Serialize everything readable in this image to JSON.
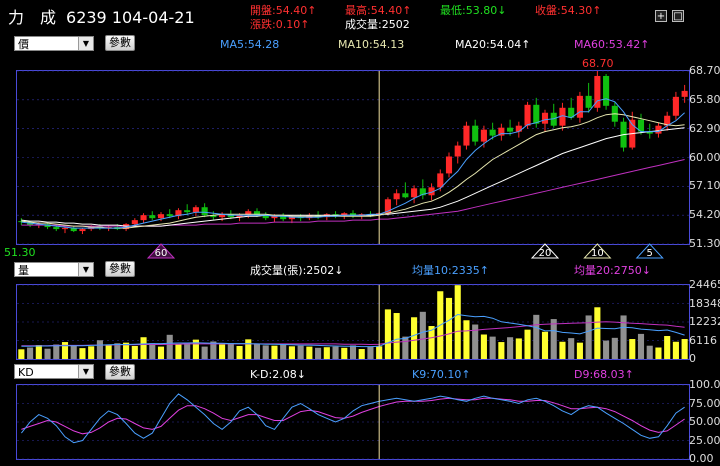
{
  "header": {
    "stock_name": "力　成",
    "code_date": "6239 104-04-21",
    "open": "開盤:54.40↑",
    "high": "最高:54.40↑",
    "low": "最低:53.80↓",
    "close": "收盤:54.30↑",
    "change": "漲跌:0.10↑",
    "volume": "成交量:2502",
    "plus_icon": "+",
    "window_icon": "□"
  },
  "colors": {
    "up": "#ff2828",
    "down": "#10c010",
    "ma5": "#4aa0ff",
    "ma10": "#e8e8b0",
    "ma20": "#ffffff",
    "ma60": "#c030c0",
    "vol_up": "#ffff30",
    "vol_down": "#909090",
    "k": "#4aa0ff",
    "d": "#e040e0",
    "grid": "#3030a0",
    "panel_border": "#4a4ad8",
    "cursor": "#f0e0a0"
  },
  "price_panel": {
    "selector": "價",
    "param_button": "參數",
    "ma5": "MA5:54.28",
    "ma10": "MA10:54.13",
    "ma20": "MA20:54.04↑",
    "ma60": "MA60:53.42↑",
    "high_label": "68.70",
    "low_label": "51.30",
    "markers": [
      "60",
      "20",
      "10",
      "5"
    ]
  },
  "volume_panel": {
    "selector": "量",
    "param_button": "參數",
    "vol_label": "成交量(張):2502↓",
    "avg10": "均量10:2335↑",
    "avg20": "均量20:2750↓"
  },
  "kd_panel": {
    "selector": "KD",
    "param_button": "參數",
    "kd_diff": "K-D:2.08↓",
    "k": "K9:70.10↑",
    "d": "D9:68.03↑"
  },
  "chart_data": [
    {
      "type": "candlestick",
      "title": "",
      "ylim": [
        51.3,
        68.7
      ],
      "y_ticks": [
        "68.70",
        "65.80",
        "62.90",
        "60.00",
        "57.10",
        "54.20",
        "51.30"
      ],
      "candles": [
        [
          53.6,
          53.9,
          53.2,
          53.5
        ],
        [
          53.5,
          53.6,
          53.0,
          53.2
        ],
        [
          53.2,
          53.5,
          52.9,
          53.3
        ],
        [
          53.3,
          53.4,
          52.8,
          53.0
        ],
        [
          53.0,
          53.2,
          52.6,
          52.8
        ],
        [
          52.8,
          53.0,
          52.4,
          52.9
        ],
        [
          52.9,
          53.1,
          52.5,
          52.6
        ],
        [
          52.6,
          52.9,
          52.3,
          52.8
        ],
        [
          52.8,
          53.2,
          52.6,
          53.1
        ],
        [
          53.1,
          53.3,
          52.7,
          52.9
        ],
        [
          52.9,
          53.2,
          52.6,
          53.0
        ],
        [
          53.0,
          53.3,
          52.7,
          52.8
        ],
        [
          52.8,
          53.4,
          52.6,
          53.3
        ],
        [
          53.3,
          53.9,
          53.0,
          53.7
        ],
        [
          53.7,
          54.4,
          53.4,
          54.2
        ],
        [
          54.2,
          54.6,
          53.7,
          53.9
        ],
        [
          53.9,
          54.5,
          53.6,
          54.3
        ],
        [
          54.3,
          54.8,
          53.9,
          54.1
        ],
        [
          54.1,
          54.9,
          53.8,
          54.7
        ],
        [
          54.7,
          55.3,
          54.2,
          54.5
        ],
        [
          54.5,
          55.2,
          54.1,
          55.0
        ],
        [
          55.0,
          55.4,
          54.0,
          54.2
        ],
        [
          54.2,
          54.6,
          53.7,
          54.0
        ],
        [
          54.0,
          54.5,
          53.6,
          54.3
        ],
        [
          54.3,
          54.7,
          53.8,
          54.0
        ],
        [
          54.0,
          54.4,
          53.6,
          54.2
        ],
        [
          54.2,
          54.8,
          53.9,
          54.6
        ],
        [
          54.6,
          54.9,
          54.0,
          54.2
        ],
        [
          54.2,
          54.5,
          53.7,
          53.9
        ],
        [
          53.9,
          54.3,
          53.5,
          54.1
        ],
        [
          54.1,
          54.4,
          53.6,
          53.8
        ],
        [
          53.8,
          54.2,
          53.4,
          54.0
        ],
        [
          54.0,
          54.3,
          53.6,
          53.9
        ],
        [
          53.9,
          54.4,
          53.7,
          54.2
        ],
        [
          54.2,
          54.6,
          53.8,
          54.0
        ],
        [
          54.0,
          54.4,
          53.7,
          54.3
        ],
        [
          54.3,
          54.6,
          53.9,
          54.1
        ],
        [
          54.1,
          54.5,
          53.8,
          54.4
        ],
        [
          54.4,
          54.7,
          53.9,
          54.1
        ],
        [
          54.1,
          54.4,
          53.8,
          54.3
        ],
        [
          54.3,
          54.6,
          54.0,
          54.2
        ],
        [
          54.2,
          54.5,
          53.8,
          54.4
        ],
        [
          54.4,
          56.0,
          54.2,
          55.8
        ],
        [
          55.8,
          56.8,
          55.2,
          56.4
        ],
        [
          56.4,
          57.5,
          55.9,
          56.0
        ],
        [
          56.0,
          57.2,
          55.4,
          56.9
        ],
        [
          56.9,
          57.8,
          55.8,
          56.2
        ],
        [
          56.2,
          57.4,
          55.7,
          57.0
        ],
        [
          57.0,
          58.8,
          56.6,
          58.4
        ],
        [
          58.4,
          60.5,
          58.0,
          60.1
        ],
        [
          60.1,
          61.6,
          59.4,
          61.2
        ],
        [
          61.2,
          63.6,
          60.8,
          63.2
        ],
        [
          63.2,
          63.8,
          61.2,
          61.6
        ],
        [
          61.6,
          63.2,
          61.0,
          62.8
        ],
        [
          62.8,
          63.5,
          61.8,
          62.2
        ],
        [
          62.2,
          63.4,
          61.7,
          63.0
        ],
        [
          63.0,
          63.8,
          62.2,
          62.6
        ],
        [
          62.6,
          63.6,
          62.0,
          63.2
        ],
        [
          63.2,
          65.6,
          62.9,
          65.3
        ],
        [
          65.3,
          66.0,
          63.0,
          63.4
        ],
        [
          63.4,
          64.8,
          62.6,
          64.5
        ],
        [
          64.5,
          65.4,
          63.0,
          63.2
        ],
        [
          63.2,
          65.5,
          62.7,
          65.0
        ],
        [
          65.0,
          66.0,
          63.8,
          64.0
        ],
        [
          64.0,
          66.6,
          63.5,
          66.2
        ],
        [
          66.2,
          67.5,
          64.5,
          65.0
        ],
        [
          65.0,
          68.7,
          64.6,
          68.2
        ],
        [
          68.2,
          68.4,
          64.8,
          65.2
        ],
        [
          65.2,
          65.6,
          63.1,
          63.6
        ],
        [
          63.6,
          64.0,
          60.6,
          61.0
        ],
        [
          61.0,
          64.6,
          60.8,
          63.8
        ],
        [
          63.8,
          64.4,
          62.3,
          62.6
        ],
        [
          62.6,
          63.4,
          61.9,
          62.4
        ],
        [
          62.4,
          63.5,
          62.0,
          63.2
        ],
        [
          63.2,
          64.6,
          62.7,
          64.2
        ],
        [
          64.2,
          66.6,
          63.8,
          66.1
        ],
        [
          66.1,
          67.3,
          65.5,
          66.7
        ]
      ],
      "ma5": [
        53.5,
        53.4,
        53.3,
        53.2,
        53.1,
        53.0,
        52.9,
        52.9,
        52.9,
        52.9,
        52.9,
        52.9,
        53.0,
        53.2,
        53.4,
        53.6,
        53.8,
        54.0,
        54.2,
        54.3,
        54.5,
        54.5,
        54.4,
        54.3,
        54.2,
        54.2,
        54.2,
        54.2,
        54.2,
        54.1,
        54.1,
        54.0,
        54.0,
        54.0,
        54.0,
        54.1,
        54.1,
        54.2,
        54.2,
        54.2,
        54.3,
        54.3,
        54.6,
        55.0,
        55.4,
        55.9,
        56.3,
        56.5,
        56.9,
        57.8,
        58.6,
        59.8,
        60.7,
        61.4,
        62.0,
        62.4,
        62.4,
        62.6,
        63.3,
        63.5,
        63.8,
        63.9,
        64.2,
        64.0,
        64.6,
        64.6,
        65.7,
        65.9,
        65.6,
        64.6,
        63.3,
        62.6,
        62.6,
        62.6,
        63.2,
        63.7,
        64.5
      ],
      "ma10": [
        53.6,
        53.5,
        53.4,
        53.4,
        53.3,
        53.2,
        53.1,
        53.1,
        53.0,
        53.0,
        52.9,
        52.9,
        52.9,
        53.0,
        53.1,
        53.2,
        53.3,
        53.4,
        53.6,
        53.8,
        54.0,
        54.1,
        54.2,
        54.3,
        54.3,
        54.3,
        54.3,
        54.3,
        54.3,
        54.2,
        54.2,
        54.1,
        54.1,
        54.1,
        54.1,
        54.1,
        54.1,
        54.1,
        54.1,
        54.1,
        54.1,
        54.2,
        54.4,
        54.6,
        54.8,
        55.1,
        55.4,
        55.6,
        56.0,
        56.5,
        57.1,
        57.8,
        58.4,
        59.1,
        59.8,
        60.3,
        60.8,
        61.3,
        61.8,
        62.3,
        62.6,
        62.8,
        63.0,
        63.1,
        63.3,
        63.6,
        64.0,
        64.3,
        64.4,
        64.3,
        64.1,
        63.9,
        63.7,
        63.5,
        63.3,
        63.2,
        63.3
      ],
      "ma20": [
        53.7,
        53.6,
        53.6,
        53.5,
        53.5,
        53.4,
        53.4,
        53.3,
        53.3,
        53.2,
        53.2,
        53.2,
        53.1,
        53.1,
        53.1,
        53.1,
        53.1,
        53.2,
        53.3,
        53.4,
        53.5,
        53.6,
        53.7,
        53.8,
        53.9,
        54.0,
        54.1,
        54.1,
        54.2,
        54.2,
        54.2,
        54.2,
        54.2,
        54.2,
        54.2,
        54.2,
        54.2,
        54.2,
        54.2,
        54.2,
        54.2,
        54.3,
        54.3,
        54.4,
        54.5,
        54.6,
        54.7,
        54.8,
        55.0,
        55.3,
        55.6,
        56.0,
        56.4,
        56.8,
        57.2,
        57.6,
        58.0,
        58.4,
        58.8,
        59.2,
        59.6,
        60.0,
        60.4,
        60.7,
        61.0,
        61.3,
        61.6,
        61.9,
        62.1,
        62.3,
        62.4,
        62.5,
        62.6,
        62.7,
        62.8,
        62.9,
        63.0
      ],
      "ma60": [
        53.2,
        53.2,
        53.2,
        53.2,
        53.2,
        53.1,
        53.1,
        53.1,
        53.1,
        53.1,
        53.1,
        53.1,
        53.1,
        53.1,
        53.1,
        53.1,
        53.1,
        53.2,
        53.2,
        53.2,
        53.2,
        53.3,
        53.3,
        53.3,
        53.3,
        53.4,
        53.4,
        53.4,
        53.4,
        53.5,
        53.5,
        53.5,
        53.5,
        53.5,
        53.6,
        53.6,
        53.6,
        53.6,
        53.7,
        53.7,
        53.7,
        53.8,
        53.8,
        53.9,
        54.0,
        54.1,
        54.2,
        54.3,
        54.4,
        54.5,
        54.6,
        54.8,
        55.0,
        55.2,
        55.4,
        55.6,
        55.8,
        56.0,
        56.2,
        56.4,
        56.6,
        56.8,
        57.0,
        57.2,
        57.4,
        57.6,
        57.8,
        58.0,
        58.2,
        58.4,
        58.6,
        58.8,
        59.0,
        59.2,
        59.4,
        59.6,
        59.8
      ]
    },
    {
      "type": "bar",
      "title": "",
      "ylim": [
        0,
        24465
      ],
      "y_ticks": [
        "24465",
        "18348",
        "12232",
        "6116",
        "0"
      ],
      "values": [
        3200,
        3800,
        4600,
        3400,
        4800,
        5600,
        4300,
        3600,
        4200,
        6200,
        4600,
        5200,
        5400,
        4300,
        7200,
        5200,
        4100,
        8000,
        4800,
        5400,
        6400,
        4100,
        5800,
        4800,
        5200,
        4300,
        6500,
        5000,
        4500,
        4400,
        4800,
        4200,
        4400,
        4100,
        3700,
        3900,
        4100,
        3700,
        4500,
        3300,
        4100,
        4200,
        16400,
        15200,
        7400,
        13800,
        15600,
        10900,
        22400,
        20200,
        24400,
        12800,
        11400,
        8100,
        7400,
        5600,
        7200,
        6800,
        9700,
        14600,
        9000,
        13200,
        5700,
        6900,
        5400,
        14400,
        17100,
        6100,
        7000,
        14400,
        6600,
        8300,
        4400,
        3800,
        7600,
        5700,
        6600
      ],
      "up": [
        1,
        0,
        1,
        0,
        0,
        1,
        0,
        1,
        1,
        0,
        1,
        0,
        1,
        1,
        1,
        0,
        1,
        0,
        1,
        0,
        1,
        0,
        0,
        1,
        0,
        1,
        1,
        0,
        0,
        1,
        0,
        1,
        0,
        1,
        0,
        1,
        0,
        1,
        0,
        1,
        0,
        1,
        1,
        1,
        0,
        1,
        0,
        1,
        1,
        1,
        1,
        1,
        0,
        1,
        0,
        1,
        0,
        1,
        1,
        0,
        1,
        0,
        1,
        0,
        1,
        0,
        1,
        0,
        0,
        0,
        1,
        0,
        0,
        1,
        1,
        1,
        1
      ],
      "avg10": [
        4200,
        4200,
        4300,
        4300,
        4400,
        4400,
        4400,
        4400,
        4500,
        4600,
        4700,
        4800,
        4800,
        4900,
        5000,
        5100,
        5100,
        5200,
        5300,
        5300,
        5400,
        5300,
        5200,
        5200,
        5100,
        5100,
        5100,
        5000,
        4900,
        4900,
        4800,
        4700,
        4600,
        4600,
        4500,
        4400,
        4300,
        4200,
        4200,
        4100,
        4100,
        4200,
        5400,
        6500,
        6800,
        7800,
        8900,
        9500,
        11200,
        12800,
        14700,
        14300,
        14000,
        14100,
        13500,
        12300,
        11900,
        11500,
        11000,
        10400,
        9300,
        9400,
        8800,
        8600,
        8300,
        9200,
        10200,
        10100,
        10000,
        10500,
        10300,
        9900,
        9700,
        9400,
        9600,
        8800,
        7900
      ],
      "avg20": [
        4400,
        4400,
        4400,
        4400,
        4500,
        4500,
        4500,
        4500,
        4600,
        4600,
        4600,
        4700,
        4700,
        4700,
        4800,
        4800,
        4800,
        4900,
        4900,
        5000,
        5000,
        5000,
        5000,
        5000,
        5000,
        5000,
        5000,
        5000,
        5000,
        5000,
        5000,
        5000,
        5000,
        5000,
        5000,
        5000,
        5000,
        4900,
        4900,
        4900,
        4800,
        4900,
        5300,
        5600,
        5800,
        6200,
        6600,
        7000,
        7600,
        8300,
        9200,
        9300,
        9500,
        9800,
        10000,
        10200,
        10400,
        10700,
        11000,
        11300,
        11500,
        11600,
        11700,
        11800,
        11900,
        12000,
        12200,
        12300,
        12200,
        12000,
        11800,
        11700,
        11500,
        11300,
        11200,
        10800,
        10500
      ]
    },
    {
      "type": "line",
      "title": "",
      "ylim": [
        0,
        100
      ],
      "y_ticks": [
        "100.00",
        "75.00",
        "50.00",
        "25.00",
        "0.00"
      ],
      "series": [
        {
          "name": "K9",
          "values": [
            35,
            50,
            60,
            55,
            45,
            30,
            22,
            25,
            40,
            55,
            65,
            60,
            48,
            35,
            28,
            35,
            55,
            75,
            88,
            80,
            70,
            60,
            48,
            40,
            50,
            65,
            70,
            60,
            45,
            40,
            55,
            70,
            75,
            68,
            60,
            55,
            50,
            55,
            65,
            72,
            75,
            78,
            80,
            82,
            80,
            78,
            80,
            82,
            85,
            83,
            80,
            78,
            82,
            85,
            82,
            80,
            78,
            75,
            80,
            82,
            78,
            72,
            65,
            60,
            68,
            72,
            70,
            62,
            55,
            48,
            40,
            32,
            28,
            30,
            45,
            62,
            70
          ]
        },
        {
          "name": "D9",
          "values": [
            40,
            44,
            48,
            52,
            50,
            44,
            38,
            34,
            36,
            42,
            50,
            55,
            54,
            48,
            42,
            40,
            44,
            55,
            66,
            72,
            72,
            68,
            62,
            55,
            52,
            56,
            60,
            60,
            56,
            52,
            52,
            58,
            64,
            66,
            64,
            60,
            56,
            55,
            58,
            63,
            67,
            71,
            74,
            77,
            78,
            78,
            78,
            79,
            81,
            82,
            81,
            80,
            80,
            82,
            82,
            81,
            80,
            78,
            78,
            79,
            79,
            76,
            72,
            68,
            68,
            69,
            70,
            68,
            64,
            58,
            52,
            45,
            39,
            36,
            38,
            46,
            54
          ]
        }
      ]
    }
  ]
}
